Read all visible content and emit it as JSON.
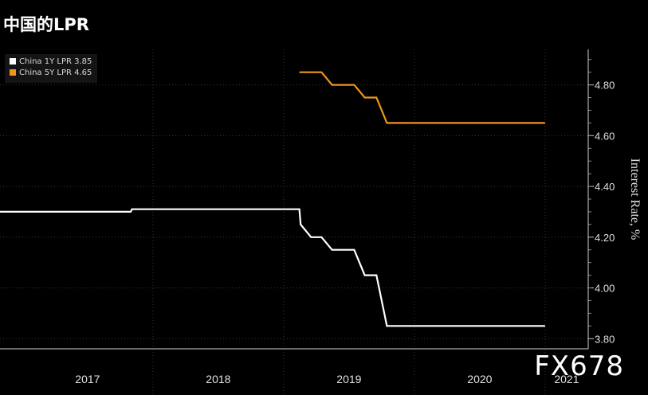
{
  "title": "中国的LPR",
  "watermark": "FX678",
  "chart_data": {
    "type": "line",
    "title": "中国的LPR",
    "ylabel": "Interest Rate, %",
    "xlabel": "",
    "ylim": [
      3.76,
      4.94
    ],
    "yticks": [
      "3.80",
      "4.00",
      "4.20",
      "4.40",
      "4.60",
      "4.80"
    ],
    "xlim": [
      2016.83,
      2021.33
    ],
    "year_labels": [
      "2017",
      "2018",
      "2019",
      "2020",
      "2021"
    ],
    "grid": "horizontal-dotted",
    "legend_position": "top-left",
    "series": [
      {
        "name": "China 1Y LPR",
        "legend": "China 1Y LPR 3.85",
        "color": "#ffffff",
        "points": [
          [
            2016.83,
            4.3
          ],
          [
            2017.83,
            4.3
          ],
          [
            2017.84,
            4.31
          ],
          [
            2019.12,
            4.31
          ],
          [
            2019.13,
            4.25
          ],
          [
            2019.21,
            4.2
          ],
          [
            2019.29,
            4.2
          ],
          [
            2019.37,
            4.15
          ],
          [
            2019.54,
            4.15
          ],
          [
            2019.62,
            4.05
          ],
          [
            2019.71,
            4.05
          ],
          [
            2019.79,
            3.85
          ],
          [
            2021.0,
            3.85
          ]
        ]
      },
      {
        "name": "China 5Y LPR",
        "legend": "China 5Y LPR 4.65",
        "color": "#f0951d",
        "points": [
          [
            2019.12,
            4.85
          ],
          [
            2019.29,
            4.85
          ],
          [
            2019.37,
            4.8
          ],
          [
            2019.54,
            4.8
          ],
          [
            2019.62,
            4.75
          ],
          [
            2019.71,
            4.75
          ],
          [
            2019.79,
            4.65
          ],
          [
            2021.0,
            4.65
          ]
        ]
      }
    ]
  }
}
